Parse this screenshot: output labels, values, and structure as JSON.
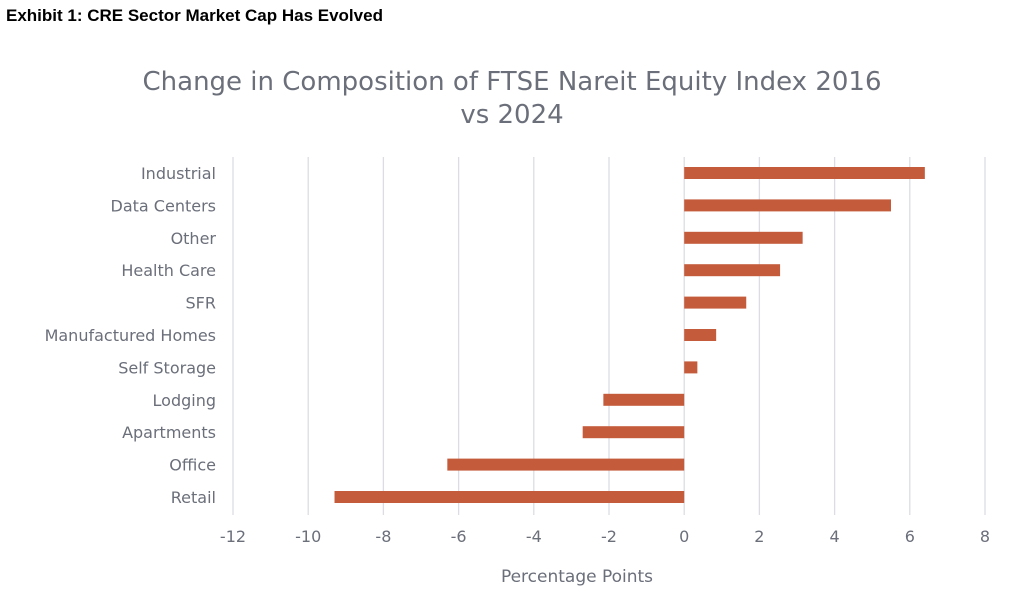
{
  "exhibit_caption": "Exhibit 1: CRE Sector Market Cap Has Evolved",
  "colors": {
    "bar": "#c45c3c",
    "grid": "#dcdde3",
    "text": "#6b6f7a"
  },
  "chart_data": {
    "type": "bar",
    "orientation": "horizontal",
    "title": [
      "Change in Composition of FTSE Nareit Equity Index 2016",
      "vs 2024"
    ],
    "xlabel": "Percentage Points",
    "ylabel": "",
    "xlim": [
      -12,
      8
    ],
    "xticks": [
      -12,
      -10,
      -8,
      -6,
      -4,
      -2,
      0,
      2,
      4,
      6,
      8
    ],
    "grid": "vertical",
    "categories": [
      "Industrial",
      "Data Centers",
      "Other",
      "Health Care",
      "SFR",
      "Manufactured Homes",
      "Self Storage",
      "Lodging",
      "Apartments",
      "Office",
      "Retail"
    ],
    "values": [
      6.4,
      5.5,
      3.15,
      2.55,
      1.65,
      0.85,
      0.35,
      -2.15,
      -2.7,
      -6.3,
      -9.3
    ]
  }
}
